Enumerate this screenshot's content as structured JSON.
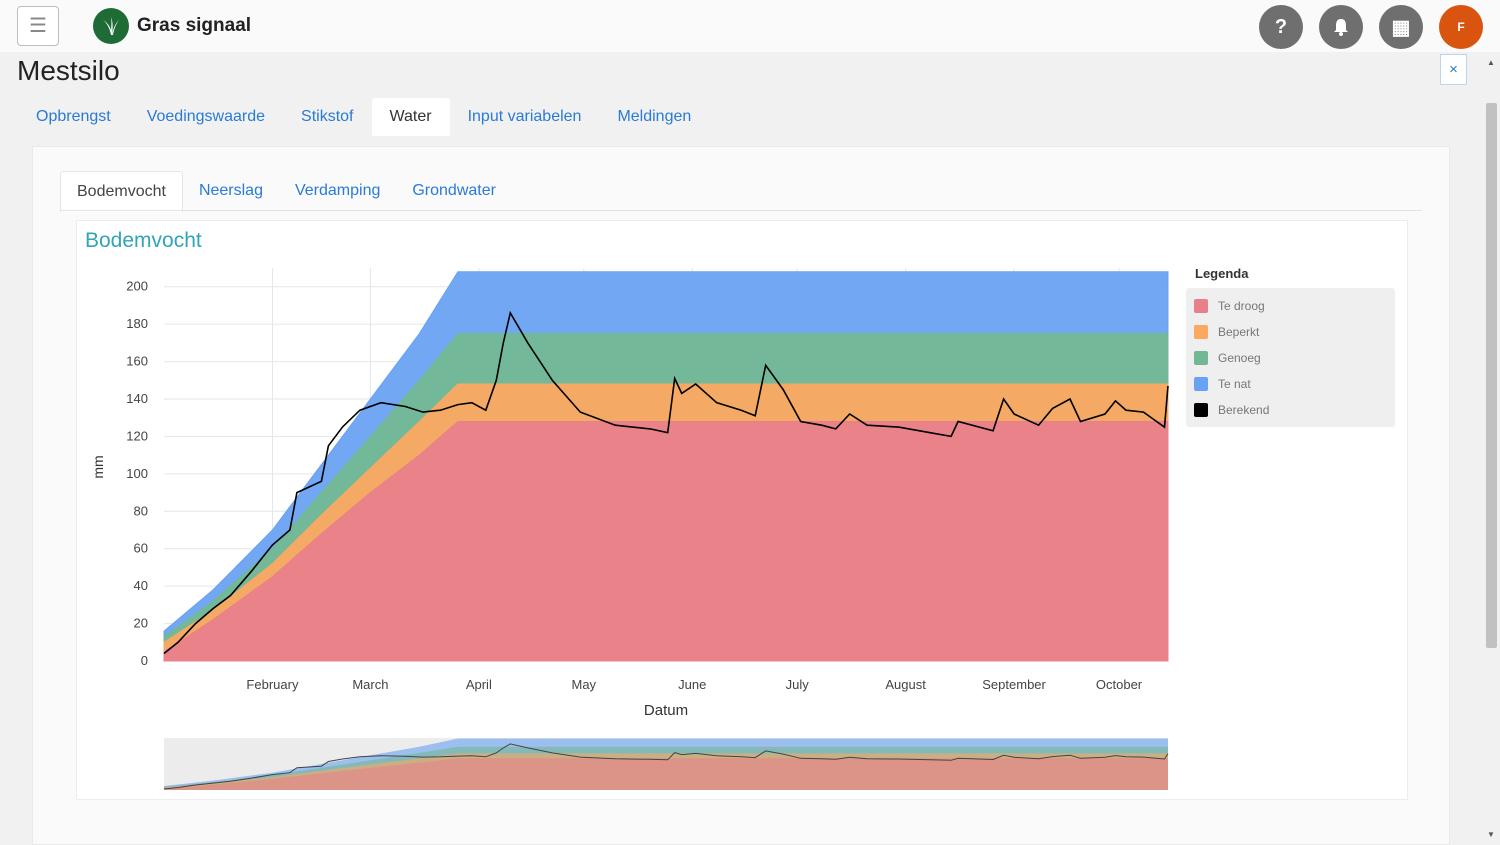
{
  "header": {
    "app_title": "Gras signaal",
    "menu_icon": "hamburger-icon",
    "logo_icon": "grass-logo-icon",
    "help_symbol": "?",
    "apps_symbol": "▦",
    "avatar_initial": "F"
  },
  "page": {
    "title": "Mestsilo",
    "close_symbol": "×"
  },
  "tabs": [
    {
      "label": "Opbrengst"
    },
    {
      "label": "Voedingswaarde"
    },
    {
      "label": "Stikstof"
    },
    {
      "label": "Water"
    },
    {
      "label": "Input variabelen"
    },
    {
      "label": "Meldingen"
    }
  ],
  "subtabs": [
    {
      "label": "Bodemvocht"
    },
    {
      "label": "Neerslag"
    },
    {
      "label": "Verdamping"
    },
    {
      "label": "Grondwater"
    }
  ],
  "colors": {
    "te_droog": "#e8808b",
    "beperkt": "#fba861",
    "genoeg": "#72b894",
    "te_nat": "#69a2f2",
    "berekend": "#000000",
    "accent": "#2a7ad7",
    "chart_title": "#31a4b9"
  },
  "chart_data": {
    "type": "area",
    "title": "Bodemvocht",
    "xlabel": "Datum",
    "ylabel": "mm",
    "ylim": [
      0,
      210
    ],
    "yticks": [
      0,
      20,
      40,
      60,
      80,
      100,
      120,
      140,
      160,
      180,
      200
    ],
    "xlim": [
      "2019-01-01",
      "2019-10-15"
    ],
    "xticks": [
      {
        "date": "2019-02-01",
        "label": "February"
      },
      {
        "date": "2019-03-01",
        "label": "March"
      },
      {
        "date": "2019-04-01",
        "label": "April"
      },
      {
        "date": "2019-05-01",
        "label": "May"
      },
      {
        "date": "2019-06-01",
        "label": "June"
      },
      {
        "date": "2019-07-01",
        "label": "July"
      },
      {
        "date": "2019-08-01",
        "label": "August"
      },
      {
        "date": "2019-09-01",
        "label": "September"
      },
      {
        "date": "2019-10-01",
        "label": "October"
      }
    ],
    "grid": true,
    "legend_title": "Legenda",
    "legend_position": "right",
    "series": [
      {
        "name": "Te droog",
        "key": "te_droog",
        "points": [
          [
            "2019-01-01",
            5
          ],
          [
            "2019-01-15",
            22
          ],
          [
            "2019-02-01",
            45
          ],
          [
            "2019-02-15",
            68
          ],
          [
            "2019-03-01",
            90
          ],
          [
            "2019-03-15",
            110
          ],
          [
            "2019-03-26",
            128
          ],
          [
            "2019-10-15",
            128
          ]
        ]
      },
      {
        "name": "Beperkt",
        "key": "beperkt",
        "points": [
          [
            "2019-01-01",
            10
          ],
          [
            "2019-01-15",
            27
          ],
          [
            "2019-02-01",
            52
          ],
          [
            "2019-02-15",
            78
          ],
          [
            "2019-03-01",
            103
          ],
          [
            "2019-03-15",
            128
          ],
          [
            "2019-03-26",
            148
          ],
          [
            "2019-10-15",
            148
          ]
        ]
      },
      {
        "name": "Genoeg",
        "key": "genoeg",
        "points": [
          [
            "2019-01-01",
            13
          ],
          [
            "2019-01-15",
            32
          ],
          [
            "2019-02-01",
            60
          ],
          [
            "2019-02-15",
            90
          ],
          [
            "2019-03-01",
            120
          ],
          [
            "2019-03-15",
            150
          ],
          [
            "2019-03-26",
            175
          ],
          [
            "2019-10-15",
            175
          ]
        ]
      },
      {
        "name": "Te nat",
        "key": "te_nat",
        "points": [
          [
            "2019-01-01",
            16
          ],
          [
            "2019-01-15",
            38
          ],
          [
            "2019-02-01",
            70
          ],
          [
            "2019-02-15",
            105
          ],
          [
            "2019-03-01",
            140
          ],
          [
            "2019-03-15",
            175
          ],
          [
            "2019-03-26",
            208
          ],
          [
            "2019-10-15",
            208
          ]
        ]
      },
      {
        "name": "Berekend",
        "key": "berekend",
        "points": [
          [
            "2019-01-01",
            4
          ],
          [
            "2019-01-05",
            10
          ],
          [
            "2019-01-10",
            20
          ],
          [
            "2019-01-15",
            28
          ],
          [
            "2019-01-20",
            35
          ],
          [
            "2019-01-26",
            48
          ],
          [
            "2019-02-01",
            62
          ],
          [
            "2019-02-06",
            70
          ],
          [
            "2019-02-08",
            90
          ],
          [
            "2019-02-15",
            96
          ],
          [
            "2019-02-17",
            115
          ],
          [
            "2019-02-21",
            125
          ],
          [
            "2019-02-26",
            134
          ],
          [
            "2019-03-04",
            138
          ],
          [
            "2019-03-11",
            136
          ],
          [
            "2019-03-16",
            133
          ],
          [
            "2019-03-21",
            134
          ],
          [
            "2019-03-26",
            137
          ],
          [
            "2019-03-30",
            138
          ],
          [
            "2019-04-03",
            134
          ],
          [
            "2019-04-06",
            150
          ],
          [
            "2019-04-08",
            170
          ],
          [
            "2019-04-10",
            186
          ],
          [
            "2019-04-15",
            170
          ],
          [
            "2019-04-22",
            150
          ],
          [
            "2019-04-30",
            133
          ],
          [
            "2019-05-10",
            126
          ],
          [
            "2019-05-20",
            124
          ],
          [
            "2019-05-25",
            122
          ],
          [
            "2019-05-27",
            151
          ],
          [
            "2019-05-29",
            143
          ],
          [
            "2019-06-02",
            148
          ],
          [
            "2019-06-08",
            138
          ],
          [
            "2019-06-15",
            134
          ],
          [
            "2019-06-19",
            131
          ],
          [
            "2019-06-22",
            158
          ],
          [
            "2019-06-27",
            145
          ],
          [
            "2019-07-02",
            128
          ],
          [
            "2019-07-08",
            126
          ],
          [
            "2019-07-12",
            124
          ],
          [
            "2019-07-16",
            132
          ],
          [
            "2019-07-21",
            126
          ],
          [
            "2019-07-30",
            125
          ],
          [
            "2019-08-08",
            122
          ],
          [
            "2019-08-14",
            120
          ],
          [
            "2019-08-16",
            128
          ],
          [
            "2019-08-26",
            123
          ],
          [
            "2019-08-29",
            140
          ],
          [
            "2019-09-01",
            132
          ],
          [
            "2019-09-08",
            126
          ],
          [
            "2019-09-12",
            135
          ],
          [
            "2019-09-17",
            140
          ],
          [
            "2019-09-20",
            128
          ],
          [
            "2019-09-27",
            132
          ],
          [
            "2019-09-30",
            139
          ],
          [
            "2019-10-03",
            134
          ],
          [
            "2019-10-08",
            133
          ],
          [
            "2019-10-14",
            125
          ],
          [
            "2019-10-15",
            147
          ]
        ]
      }
    ],
    "overview": {
      "show": true
    }
  }
}
